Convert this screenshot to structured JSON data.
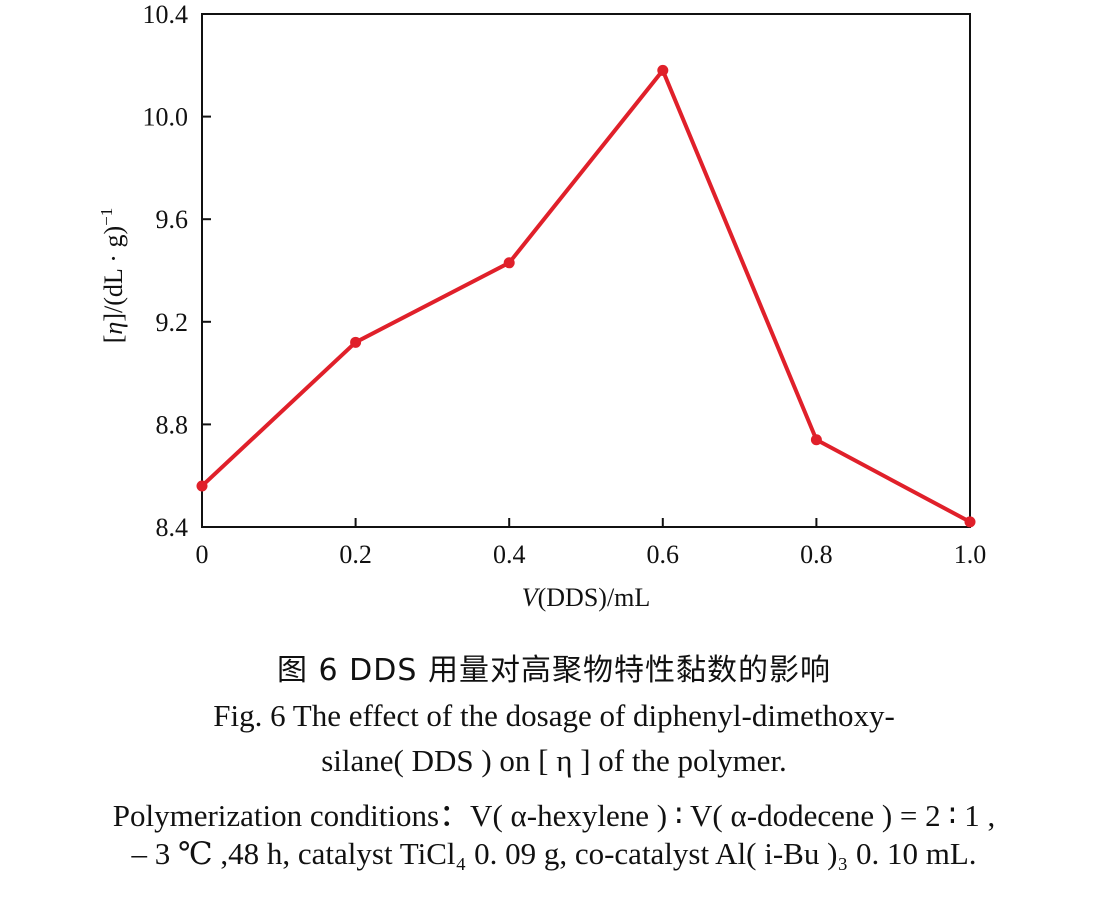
{
  "chart_data": {
    "type": "line",
    "x": [
      0,
      0.2,
      0.4,
      0.6,
      0.8,
      1.0
    ],
    "series": [
      {
        "values": [
          8.56,
          9.12,
          9.43,
          10.18,
          8.74,
          8.42
        ],
        "color": "#e0202a"
      }
    ],
    "xlim": [
      0,
      1.0
    ],
    "ylim": [
      8.4,
      10.4
    ],
    "x_ticks": [
      "0",
      "0.2",
      "0.4",
      "0.6",
      "0.8",
      "1.0"
    ],
    "y_ticks": [
      "8.4",
      "8.8",
      "9.2",
      "9.6",
      "10.0",
      "10.4"
    ],
    "xlabel": "V(DDS)/mL",
    "ylabel": "[η]/(dL · g)⁻¹",
    "grid": false,
    "legend": "none"
  },
  "caption": {
    "cn": "图 6   DDS 用量对高聚物特性黏数的影响",
    "en_line1": "Fig. 6    The effect of the dosage of diphenyl-dimethoxy-",
    "en_line2": "silane( DDS )  on  [ η ]  of the polymer.",
    "en_line3": "Polymerization conditions：V( α-hexylene )  ∶  V( α-dodecene ) = 2 ∶ 1 ,",
    "en_line4": "– 3 ℃ ,48 h, catalyst TiCl₄ 0. 09 g,  co-catalyst Al( i-Bu )₃ 0. 10 mL."
  }
}
